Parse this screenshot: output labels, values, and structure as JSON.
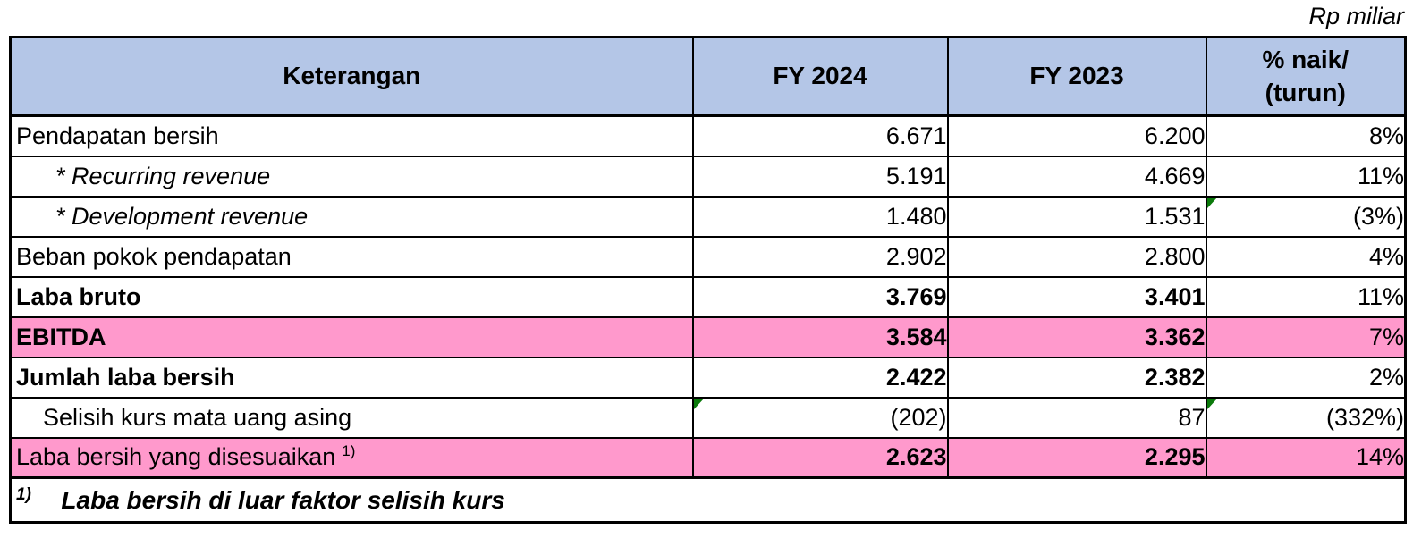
{
  "unit_label": "Rp miliar",
  "colors": {
    "header_bg": "#B4C6E7",
    "highlight_bg": "#FF99CC",
    "marker_green": "#0B7A0B",
    "border": "#000000"
  },
  "table": {
    "columns": {
      "keterangan": "Keterangan",
      "fy2024": "FY 2024",
      "fy2023": "FY 2023",
      "pct_line1": "% naik/",
      "pct_line2": "(turun)"
    },
    "rows": [
      {
        "label": "Pendapatan bersih",
        "fy2024": "6.671",
        "fy2023": "6.200",
        "pct": "8%",
        "indent": 0,
        "label_bold": false,
        "label_italic": false,
        "num_bold": false,
        "highlight": false,
        "markers": []
      },
      {
        "label": "* Recurring revenue",
        "fy2024": "5.191",
        "fy2023": "4.669",
        "pct": "11%",
        "indent": 44,
        "label_bold": false,
        "label_italic": true,
        "num_bold": false,
        "highlight": false,
        "markers": []
      },
      {
        "label": "* Development revenue",
        "fy2024": "1.480",
        "fy2023": "1.531",
        "pct": "(3%)",
        "indent": 44,
        "label_bold": false,
        "label_italic": true,
        "num_bold": false,
        "highlight": false,
        "markers": [
          "pct"
        ]
      },
      {
        "label": "Beban pokok pendapatan",
        "fy2024": "2.902",
        "fy2023": "2.800",
        "pct": "4%",
        "indent": 0,
        "label_bold": false,
        "label_italic": false,
        "num_bold": false,
        "highlight": false,
        "markers": []
      },
      {
        "label": "Laba bruto",
        "fy2024": "3.769",
        "fy2023": "3.401",
        "pct": "11%",
        "indent": 0,
        "label_bold": true,
        "label_italic": false,
        "num_bold": true,
        "highlight": false,
        "markers": []
      },
      {
        "label": "EBITDA",
        "fy2024": "3.584",
        "fy2023": "3.362",
        "pct": "7%",
        "indent": 0,
        "label_bold": true,
        "label_italic": false,
        "num_bold": true,
        "highlight": true,
        "markers": []
      },
      {
        "label": "Jumlah laba bersih",
        "fy2024": "2.422",
        "fy2023": "2.382",
        "pct": "2%",
        "indent": 0,
        "label_bold": true,
        "label_italic": false,
        "num_bold": true,
        "highlight": false,
        "markers": []
      },
      {
        "label": "Selisih kurs mata uang asing",
        "fy2024": "(202)",
        "fy2023": "87",
        "pct": "(332%)",
        "indent": 30,
        "label_bold": false,
        "label_italic": false,
        "num_bold": false,
        "highlight": false,
        "markers": [
          "fy2024",
          "pct"
        ]
      },
      {
        "label": "Laba bersih yang disesuaikan",
        "label_sup": "1)",
        "fy2024": "2.623",
        "fy2023": "2.295",
        "pct": "14%",
        "indent": 0,
        "label_bold": false,
        "label_italic": false,
        "num_bold": true,
        "highlight": true,
        "thick_bottom": true,
        "markers": []
      }
    ],
    "footnote": {
      "marker": "1)",
      "text": "Laba bersih di luar faktor selisih kurs"
    }
  }
}
